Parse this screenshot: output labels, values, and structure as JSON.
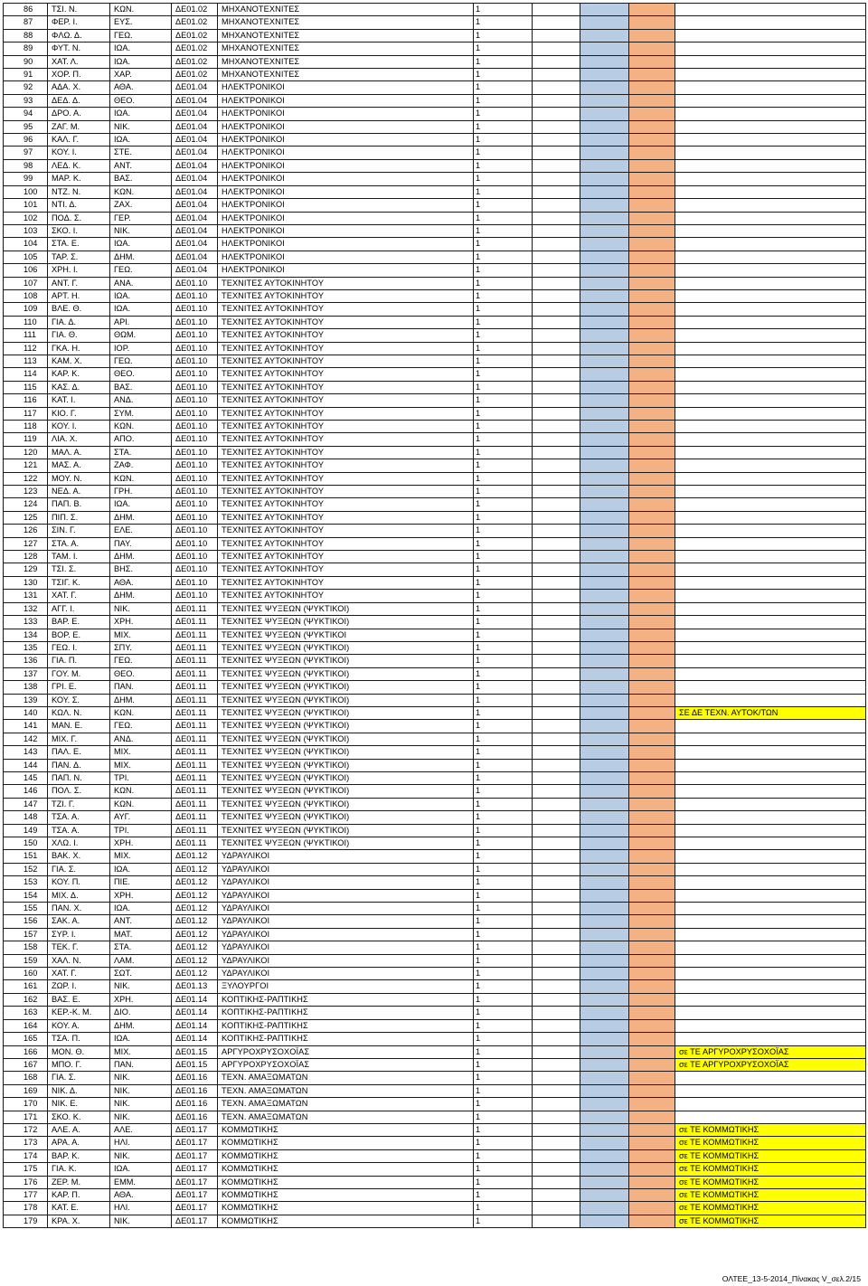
{
  "rows": [
    {
      "no": "86",
      "surname": "ΤΣΙ. Ν.",
      "father": "ΚΩΝ.",
      "code": "ΔΕ01.02",
      "specialty": "ΜΗΧΑΝΟΤΕΧΝΙΤΕΣ",
      "qty": "1",
      "note": ""
    },
    {
      "no": "87",
      "surname": "ΦΕΡ. Ι.",
      "father": "ΕΥΣ.",
      "code": "ΔΕ01.02",
      "specialty": "ΜΗΧΑΝΟΤΕΧΝΙΤΕΣ",
      "qty": "1",
      "note": ""
    },
    {
      "no": "88",
      "surname": "ΦΛΩ. Δ.",
      "father": "ΓΕΩ.",
      "code": "ΔΕ01.02",
      "specialty": "ΜΗΧΑΝΟΤΕΧΝΙΤΕΣ",
      "qty": "1",
      "note": ""
    },
    {
      "no": "89",
      "surname": "ΦΥΤ. Ν.",
      "father": "ΙΩΑ.",
      "code": "ΔΕ01.02",
      "specialty": "ΜΗΧΑΝΟΤΕΧΝΙΤΕΣ",
      "qty": "1",
      "note": ""
    },
    {
      "no": "90",
      "surname": "ΧΑΤ. Λ.",
      "father": "ΙΩΑ.",
      "code": "ΔΕ01.02",
      "specialty": "ΜΗΧΑΝΟΤΕΧΝΙΤΕΣ",
      "qty": "1",
      "note": ""
    },
    {
      "no": "91",
      "surname": "ΧΟΡ. Π.",
      "father": "ΧΑΡ.",
      "code": "ΔΕ01.02",
      "specialty": "ΜΗΧΑΝΟΤΕΧΝΙΤΕΣ",
      "qty": "1",
      "note": ""
    },
    {
      "no": "92",
      "surname": "ΑΔΑ. Χ.",
      "father": "ΑΘΑ.",
      "code": "ΔΕ01.04",
      "specialty": "ΗΛΕΚΤΡΟΝΙΚΟΙ",
      "qty": "1",
      "note": ""
    },
    {
      "no": "93",
      "surname": "ΔΕΔ. Δ.",
      "father": "ΘΕΟ.",
      "code": "ΔΕ01.04",
      "specialty": "ΗΛΕΚΤΡΟΝΙΚΟΙ",
      "qty": "1",
      "note": ""
    },
    {
      "no": "94",
      "surname": "ΔΡΟ. Α.",
      "father": "ΙΩΑ.",
      "code": "ΔΕ01.04",
      "specialty": "ΗΛΕΚΤΡΟΝΙΚΟΙ",
      "qty": "1",
      "note": ""
    },
    {
      "no": "95",
      "surname": "ΖΑΓ. Μ.",
      "father": "ΝΙΚ.",
      "code": "ΔΕ01.04",
      "specialty": "ΗΛΕΚΤΡΟΝΙΚΟΙ",
      "qty": "1",
      "note": ""
    },
    {
      "no": "96",
      "surname": "ΚΑΛ. Γ.",
      "father": "ΙΩΑ.",
      "code": "ΔΕ01.04",
      "specialty": "ΗΛΕΚΤΡΟΝΙΚΟΙ",
      "qty": "1",
      "note": ""
    },
    {
      "no": "97",
      "surname": "ΚΟΥ. Ι.",
      "father": "ΣΤΕ.",
      "code": "ΔΕ01.04",
      "specialty": "ΗΛΕΚΤΡΟΝΙΚΟΙ",
      "qty": "1",
      "note": ""
    },
    {
      "no": "98",
      "surname": "ΛΕΔ. Κ.",
      "father": "ΑΝΤ.",
      "code": "ΔΕ01.04",
      "specialty": "ΗΛΕΚΤΡΟΝΙΚΟΙ",
      "qty": "1",
      "note": ""
    },
    {
      "no": "99",
      "surname": "ΜΑΡ. Κ.",
      "father": "ΒΑΣ.",
      "code": "ΔΕ01.04",
      "specialty": "ΗΛΕΚΤΡΟΝΙΚΟΙ",
      "qty": "1",
      "note": ""
    },
    {
      "no": "100",
      "surname": "ΝΤΖ. Ν.",
      "father": "ΚΩΝ.",
      "code": "ΔΕ01.04",
      "specialty": "ΗΛΕΚΤΡΟΝΙΚΟΙ",
      "qty": "1",
      "note": ""
    },
    {
      "no": "101",
      "surname": "ΝΤΙ. Δ.",
      "father": "ΖΑΧ.",
      "code": "ΔΕ01.04",
      "specialty": "ΗΛΕΚΤΡΟΝΙΚΟΙ",
      "qty": "1",
      "note": ""
    },
    {
      "no": "102",
      "surname": "ΠΟΔ. Σ.",
      "father": "ΓΕΡ.",
      "code": "ΔΕ01.04",
      "specialty": "ΗΛΕΚΤΡΟΝΙΚΟΙ",
      "qty": "1",
      "note": ""
    },
    {
      "no": "103",
      "surname": "ΣΚΟ. Ι.",
      "father": "ΝΙΚ.",
      "code": "ΔΕ01.04",
      "specialty": "ΗΛΕΚΤΡΟΝΙΚΟΙ",
      "qty": "1",
      "note": ""
    },
    {
      "no": "104",
      "surname": "ΣΤΑ. Ε.",
      "father": "ΙΩΑ.",
      "code": "ΔΕ01.04",
      "specialty": "ΗΛΕΚΤΡΟΝΙΚΟΙ",
      "qty": "1",
      "note": ""
    },
    {
      "no": "105",
      "surname": "ΤΑΡ. Σ.",
      "father": "ΔΗΜ.",
      "code": "ΔΕ01.04",
      "specialty": "ΗΛΕΚΤΡΟΝΙΚΟΙ",
      "qty": "1",
      "note": ""
    },
    {
      "no": "106",
      "surname": "ΧΡΗ. Ι.",
      "father": "ΓΕΩ.",
      "code": "ΔΕ01.04",
      "specialty": "ΗΛΕΚΤΡΟΝΙΚΟΙ",
      "qty": "1",
      "note": ""
    },
    {
      "no": "107",
      "surname": "ΑΝΤ. Γ.",
      "father": "ΑΝΑ.",
      "code": "ΔΕ01.10",
      "specialty": "ΤΕΧΝΙΤΕΣ ΑΥΤΟΚΙΝΗΤΟΥ",
      "qty": "1",
      "note": ""
    },
    {
      "no": "108",
      "surname": "ΑΡΤ. Η.",
      "father": "ΙΩΑ.",
      "code": "ΔΕ01.10",
      "specialty": "ΤΕΧΝΙΤΕΣ ΑΥΤΟΚΙΝΗΤΟΥ",
      "qty": "1",
      "note": ""
    },
    {
      "no": "109",
      "surname": "ΒΛΕ. Θ.",
      "father": "ΙΩΑ.",
      "code": "ΔΕ01.10",
      "specialty": "ΤΕΧΝΙΤΕΣ ΑΥΤΟΚΙΝΗΤΟΥ",
      "qty": "1",
      "note": ""
    },
    {
      "no": "110",
      "surname": "ΓΙΑ. Δ.",
      "father": "ΑΡΙ.",
      "code": "ΔΕ01.10",
      "specialty": "ΤΕΧΝΙΤΕΣ ΑΥΤΟΚΙΝΗΤΟΥ",
      "qty": "1",
      "note": ""
    },
    {
      "no": "111",
      "surname": "ΓΙΑ. Θ.",
      "father": "ΘΩΜ.",
      "code": "ΔΕ01.10",
      "specialty": "ΤΕΧΝΙΤΕΣ ΑΥΤΟΚΙΝΗΤΟΥ",
      "qty": "1",
      "note": ""
    },
    {
      "no": "112",
      "surname": "ΓΚΑ. Η.",
      "father": "ΙΟΡ.",
      "code": "ΔΕ01.10",
      "specialty": " ΤΕΧΝΙΤΕΣ ΑΥΤΟΚΙΝΗΤΟΥ",
      "qty": "1",
      "note": ""
    },
    {
      "no": "113",
      "surname": "ΚΑΜ. Χ.",
      "father": "ΓΕΩ.",
      "code": "ΔΕ01.10",
      "specialty": "ΤΕΧΝΙΤΕΣ ΑΥΤΟΚΙΝΗΤΟΥ",
      "qty": "1",
      "note": ""
    },
    {
      "no": "114",
      "surname": "ΚΑΡ. Κ.",
      "father": "ΘΕΟ.",
      "code": "ΔΕ01.10",
      "specialty": "ΤΕΧΝΙΤΕΣ ΑΥΤΟΚΙΝΗΤΟΥ",
      "qty": "1",
      "note": ""
    },
    {
      "no": "115",
      "surname": "ΚΑΣ. Δ.",
      "father": "ΒΑΣ.",
      "code": "ΔΕ01.10",
      "specialty": "ΤΕΧΝΙΤΕΣ ΑΥΤΟΚΙΝΗΤΟΥ",
      "qty": "1",
      "note": ""
    },
    {
      "no": "116",
      "surname": "ΚΑΤ. Ι.",
      "father": "ΑΝΔ.",
      "code": "ΔΕ01.10",
      "specialty": "ΤΕΧΝΙΤΕΣ ΑΥΤΟΚΙΝΗΤΟΥ",
      "qty": "1",
      "note": ""
    },
    {
      "no": "117",
      "surname": "ΚΙΟ. Γ.",
      "father": "ΣΥΜ.",
      "code": "ΔΕ01.10",
      "specialty": "ΤΕΧΝΙΤΕΣ ΑΥΤΟΚΙΝΗΤΟΥ",
      "qty": "1",
      "note": ""
    },
    {
      "no": "118",
      "surname": "ΚΟΥ. Ι.",
      "father": "ΚΩΝ.",
      "code": "ΔΕ01.10",
      "specialty": "ΤΕΧΝΙΤΕΣ ΑΥΤΟΚΙΝΗΤΟΥ",
      "qty": "1",
      "note": ""
    },
    {
      "no": "119",
      "surname": "ΛΙΑ. Χ.",
      "father": "ΑΠΟ.",
      "code": "ΔΕ01.10",
      "specialty": "ΤΕΧΝΙΤΕΣ ΑΥΤΟΚΙΝΗΤΟΥ",
      "qty": "1",
      "note": ""
    },
    {
      "no": "120",
      "surname": "ΜΑΛ. Α.",
      "father": "ΣΤΑ.",
      "code": "ΔΕ01.10",
      "specialty": "ΤΕΧΝΙΤΕΣ ΑΥΤΟΚΙΝΗΤΟΥ",
      "qty": "1",
      "note": ""
    },
    {
      "no": "121",
      "surname": "ΜΑΣ. Α.",
      "father": "ΖΑΦ.",
      "code": "ΔΕ01.10",
      "specialty": "ΤΕΧΝΙΤΕΣ ΑΥΤΟΚΙΝΗΤΟΥ",
      "qty": "1",
      "note": ""
    },
    {
      "no": "122",
      "surname": "ΜΟΥ. Ν.",
      "father": "ΚΩΝ.",
      "code": "ΔΕ01.10",
      "specialty": "ΤΕΧΝΙΤΕΣ ΑΥΤΟΚΙΝΗΤΟΥ",
      "qty": "1",
      "note": ""
    },
    {
      "no": "123",
      "surname": "ΝΕΔ. Α.",
      "father": "ΓΡΗ.",
      "code": "ΔΕ01.10",
      "specialty": "ΤΕΧΝΙΤΕΣ ΑΥΤΟΚΙΝΗΤΟΥ",
      "qty": "1",
      "note": ""
    },
    {
      "no": "124",
      "surname": "ΠΑΠ. Β.",
      "father": "ΙΩΑ.",
      "code": "ΔΕ01.10",
      "specialty": "ΤΕΧΝΙΤΕΣ ΑΥΤΟΚΙΝΗΤΟΥ",
      "qty": "1",
      "note": ""
    },
    {
      "no": "125",
      "surname": "ΠΙΠ. Σ.",
      "father": "ΔΗΜ.",
      "code": "ΔΕ01.10",
      "specialty": "ΤΕΧΝΙΤΕΣ ΑΥΤΟΚΙΝΗΤΟΥ",
      "qty": "1",
      "note": ""
    },
    {
      "no": "126",
      "surname": "ΣΙΝ. Γ.",
      "father": "ΕΛΕ.",
      "code": "ΔΕ01.10",
      "specialty": "ΤΕΧΝΙΤΕΣ ΑΥΤΟΚΙΝΗΤΟΥ",
      "qty": "1",
      "note": ""
    },
    {
      "no": "127",
      "surname": "ΣΤΑ. Α.",
      "father": "ΠΑΥ.",
      "code": "ΔΕ01.10",
      "specialty": "ΤΕΧΝΙΤΕΣ ΑΥΤΟΚΙΝΗΤΟΥ",
      "qty": "1",
      "note": ""
    },
    {
      "no": "128",
      "surname": "ΤΑΜ. Ι.",
      "father": "ΔΗΜ.",
      "code": "ΔΕ01.10",
      "specialty": "ΤΕΧΝΙΤΕΣ ΑΥΤΟΚΙΝΗΤΟΥ",
      "qty": "1",
      "note": ""
    },
    {
      "no": "129",
      "surname": "ΤΣΙ. Σ.",
      "father": "ΒΗΣ.",
      "code": "ΔΕ01.10",
      "specialty": "ΤΕΧΝΙΤΕΣ ΑΥΤΟΚΙΝΗΤΟΥ",
      "qty": "1",
      "note": ""
    },
    {
      "no": "130",
      "surname": "ΤΣΙΓ. Κ.",
      "father": "ΑΘΑ.",
      "code": "ΔΕ01.10",
      "specialty": "ΤΕΧΝΙΤΕΣ ΑΥΤΟΚΙΝΗΤΟΥ",
      "qty": "1",
      "note": ""
    },
    {
      "no": "131",
      "surname": "ΧΑΤ. Γ.",
      "father": "ΔΗΜ.",
      "code": "ΔΕ01.10",
      "specialty": "ΤΕΧΝΙΤΕΣ ΑΥΤΟΚΙΝΗΤΟΥ",
      "qty": "1",
      "note": ""
    },
    {
      "no": "132",
      "surname": "ΑΓΓ. Ι.",
      "father": "ΝΙΚ.",
      "code": "ΔΕ01.11",
      "specialty": "ΤΕΧΝΙΤΕΣ ΨΥΞΕΩΝ (ΨΥΚΤΙΚΟΙ)",
      "qty": "1",
      "note": ""
    },
    {
      "no": "133",
      "surname": "ΒΑΡ. Ε.",
      "father": "ΧΡΗ.",
      "code": "ΔΕ01.11",
      "specialty": "ΤΕΧΝΙΤΕΣ ΨΥΞΕΩΝ (ΨΥΚΤΙΚΟΙ)",
      "qty": "1",
      "note": ""
    },
    {
      "no": "134",
      "surname": "ΒΟΡ. Ε.",
      "father": "ΜΙΧ.",
      "code": "ΔΕ01.11",
      "specialty": "ΤΕΧΝΙΤΕΣ ΨΥΞΕΩΝ (ΨΥΚΤΙΚΟΙ",
      "qty": "1",
      "note": ""
    },
    {
      "no": "135",
      "surname": "ΓΕΩ. Ι.",
      "father": "ΣΠΥ.",
      "code": "ΔΕ01.11",
      "specialty": "ΤΕΧΝΙΤΕΣ ΨΥΞΕΩΝ (ΨΥΚΤΙΚΟΙ)",
      "qty": "1",
      "note": ""
    },
    {
      "no": "136",
      "surname": "ΓΙΑ. Π.",
      "father": "ΓΕΩ.",
      "code": "ΔΕ01.11",
      "specialty": "ΤΕΧΝΙΤΕΣ ΨΥΞΕΩΝ (ΨΥΚΤΙΚΟΙ)",
      "qty": "1",
      "note": ""
    },
    {
      "no": "137",
      "surname": "ΓΟΥ. Μ.",
      "father": "ΘΕΟ.",
      "code": "ΔΕ01.11",
      "specialty": "ΤΕΧΝΙΤΕΣ ΨΥΞΕΩΝ (ΨΥΚΤΙΚΟΙ)",
      "qty": "1",
      "note": ""
    },
    {
      "no": "138",
      "surname": "ΓΡΙ. Ε.",
      "father": "ΠΑΝ.",
      "code": "ΔΕ01.11",
      "specialty": "ΤΕΧΝΙΤΕΣ ΨΥΞΕΩΝ (ΨΥΚΤΙΚΟΙ)",
      "qty": "1",
      "note": ""
    },
    {
      "no": "139",
      "surname": "ΚΟΥ. Σ.",
      "father": "ΔΗΜ.",
      "code": "ΔΕ01.11",
      "specialty": "ΤΕΧΝΙΤΕΣ ΨΥΞΕΩΝ (ΨΥΚΤΙΚΟΙ)",
      "qty": "1",
      "note": ""
    },
    {
      "no": "140",
      "surname": "ΚΩΛ. Ν.",
      "father": "ΚΩΝ.",
      "code": "ΔΕ01.11",
      "specialty": "ΤΕΧΝΙΤΕΣ ΨΥΞΕΩΝ (ΨΥΚΤΙΚΟΙ)",
      "qty": "1",
      "note": "ΣΕ ΔΕ ΤΕΧΝ. ΑΥΤΟΚ/ΤΩΝ"
    },
    {
      "no": "141",
      "surname": "ΜΑΝ. Ε.",
      "father": "ΓΕΩ.",
      "code": "ΔΕ01.11",
      "specialty": "ΤΕΧΝΙΤΕΣ ΨΥΞΕΩΝ (ΨΥΚΤΙΚΟΙ)",
      "qty": "1",
      "note": ""
    },
    {
      "no": "142",
      "surname": "ΜΙΧ. Γ.",
      "father": "ΑΝΔ.",
      "code": "ΔΕ01.11",
      "specialty": "ΤΕΧΝΙΤΕΣ ΨΥΞΕΩΝ (ΨΥΚΤΙΚΟΙ)",
      "qty": "1",
      "note": ""
    },
    {
      "no": "143",
      "surname": "ΠΑΛ. Ε.",
      "father": "ΜΙΧ.",
      "code": "ΔΕ01.11",
      "specialty": " ΤΕΧΝΙΤΕΣ ΨΥΞΕΩΝ (ΨΥΚΤΙΚΟΙ)",
      "qty": "1",
      "note": ""
    },
    {
      "no": "144",
      "surname": "ΠΑΝ. Δ.",
      "father": "ΜΙΧ.",
      "code": "ΔΕ01.11",
      "specialty": "ΤΕΧΝΙΤΕΣ ΨΥΞΕΩΝ (ΨΥΚΤΙΚΟΙ)",
      "qty": "1",
      "note": ""
    },
    {
      "no": "145",
      "surname": "ΠΑΠ. Ν.",
      "father": "ΤΡΙ.",
      "code": "ΔΕ01.11",
      "specialty": "ΤΕΧΝΙΤΕΣ ΨΥΞΕΩΝ (ΨΥΚΤΙΚΟΙ)",
      "qty": "1",
      "note": ""
    },
    {
      "no": "146",
      "surname": "ΠΟΛ. Σ.",
      "father": "ΚΩΝ.",
      "code": "ΔΕ01.11",
      "specialty": "ΤΕΧΝΙΤΕΣ ΨΥΞΕΩΝ (ΨΥΚΤΙΚΟΙ)",
      "qty": "1",
      "note": ""
    },
    {
      "no": "147",
      "surname": "ΤΖΙ. Γ.",
      "father": "ΚΩΝ.",
      "code": "ΔΕ01.11",
      "specialty": "ΤΕΧΝΙΤΕΣ ΨΥΞΕΩΝ (ΨΥΚΤΙΚΟΙ)",
      "qty": "1",
      "note": ""
    },
    {
      "no": "148",
      "surname": "ΤΣΑ. Α.",
      "father": "ΑΥΓ.",
      "code": "ΔΕ01.11",
      "specialty": "ΤΕΧΝΙΤΕΣ ΨΥΞΕΩΝ (ΨΥΚΤΙΚΟΙ)",
      "qty": "1",
      "note": ""
    },
    {
      "no": "149",
      "surname": "ΤΣΑ. Α.",
      "father": "ΤΡΙ.",
      "code": "ΔΕ01.11",
      "specialty": "ΤΕΧΝΙΤΕΣ ΨΥΞΕΩΝ (ΨΥΚΤΙΚΟΙ)",
      "qty": "1",
      "note": ""
    },
    {
      "no": "150",
      "surname": "ΧΛΩ. Ι.",
      "father": "ΧΡΗ.",
      "code": "ΔΕ01.11",
      "specialty": "ΤΕΧΝΙΤΕΣ ΨΥΞΕΩΝ (ΨΥΚΤΙΚΟΙ)",
      "qty": "1",
      "note": ""
    },
    {
      "no": "151",
      "surname": "ΒΑΚ. Χ.",
      "father": "ΜΙΧ.",
      "code": "ΔΕ01.12",
      "specialty": "ΥΔΡΑΥΛΙΚΟΙ",
      "qty": "1",
      "note": ""
    },
    {
      "no": "152",
      "surname": "ΓΙΑ. Σ.",
      "father": "ΙΩΑ.",
      "code": "ΔΕ01.12",
      "specialty": "ΥΔΡΑΥΛΙΚΟΙ",
      "qty": "1",
      "note": ""
    },
    {
      "no": "153",
      "surname": "ΚΟΥ. Π.",
      "father": "ΠΙΕ.",
      "code": "ΔΕ01.12",
      "specialty": "ΥΔΡΑΥΛΙΚΟΙ",
      "qty": "1",
      "note": ""
    },
    {
      "no": "154",
      "surname": "ΜΙΧ. Δ.",
      "father": "ΧΡΗ.",
      "code": "ΔΕ01.12",
      "specialty": "ΥΔΡΑΥΛΙΚΟΙ",
      "qty": "1",
      "note": ""
    },
    {
      "no": "155",
      "surname": "ΠΑΝ. Χ.",
      "father": "ΙΩΑ.",
      "code": "ΔΕ01.12",
      "specialty": "ΥΔΡΑΥΛΙΚΟΙ",
      "qty": "1",
      "note": ""
    },
    {
      "no": "156",
      "surname": "ΣΑΚ. Α.",
      "father": "ΑΝΤ.",
      "code": "ΔΕ01.12",
      "specialty": "ΥΔΡΑΥΛΙΚΟΙ",
      "qty": "1",
      "note": ""
    },
    {
      "no": "157",
      "surname": "ΣΥΡ. Ι.",
      "father": "ΜΑΤ.",
      "code": "ΔΕ01.12",
      "specialty": "ΥΔΡΑΥΛΙΚΟΙ",
      "qty": "1",
      "note": ""
    },
    {
      "no": "158",
      "surname": "ΤΕΚ. Γ.",
      "father": "ΣΤΑ.",
      "code": "ΔΕ01.12",
      "specialty": "ΥΔΡΑΥΛΙΚΟΙ",
      "qty": "1",
      "note": ""
    },
    {
      "no": "159",
      "surname": "ΧΑΛ. Ν.",
      "father": "ΛΑΜ.",
      "code": "ΔΕ01.12",
      "specialty": "ΥΔΡΑΥΛΙΚΟΙ",
      "qty": "1",
      "note": ""
    },
    {
      "no": "160",
      "surname": "ΧΑΤ. Γ.",
      "father": "ΣΩΤ.",
      "code": "ΔΕ01.12",
      "specialty": "ΥΔΡΑΥΛΙΚΟΙ",
      "qty": "1",
      "note": ""
    },
    {
      "no": "161",
      "surname": "ΖΩΡ. Ι.",
      "father": "ΝΙΚ.",
      "code": "ΔΕ01.13",
      "specialty": "ΞΥΛΟΥΡΓΟΙ",
      "qty": "1",
      "note": ""
    },
    {
      "no": "162",
      "surname": "ΒΑΣ. Ε.",
      "father": "ΧΡΗ.",
      "code": "ΔΕ01.14",
      "specialty": "ΚΟΠΤΙΚΗΣ-ΡΑΠΤΙΚΗΣ",
      "qty": "1",
      "note": ""
    },
    {
      "no": "163",
      "surname": "ΚΕΡ.-Κ. Μ.",
      "father": "ΔΙΟ.",
      "code": "ΔΕ01.14",
      "specialty": "ΚΟΠΤΙΚΗΣ-ΡΑΠΤΙΚΗΣ",
      "qty": "1",
      "note": ""
    },
    {
      "no": "164",
      "surname": "ΚΟΥ. Α.",
      "father": "ΔΗΜ.",
      "code": "ΔΕ01.14",
      "specialty": "ΚΟΠΤΙΚΗΣ-ΡΑΠΤΙΚΗΣ",
      "qty": "1",
      "note": ""
    },
    {
      "no": "165",
      "surname": "ΤΣΑ. Π.",
      "father": "ΙΩΑ.",
      "code": "ΔΕ01.14",
      "specialty": "ΚΟΠΤΙΚΗΣ-ΡΑΠΤΙΚΗΣ",
      "qty": "1",
      "note": ""
    },
    {
      "no": "166",
      "surname": "ΜΟΝ. Θ.",
      "father": "ΜΙΧ.",
      "code": "ΔΕ01.15",
      "specialty": "ΑΡΓΥΡΟΧΡΥΣΟΧΟΪΑΣ",
      "qty": "1",
      "note": "σε ΤΕ ΑΡΓΥΡΟΧΡΥΣΟΧΟΪΑΣ"
    },
    {
      "no": "167",
      "surname": "ΜΠΟ. Γ.",
      "father": "ΠΑΝ.",
      "code": "ΔΕ01.15",
      "specialty": "ΑΡΓΥΡΟΧΡΥΣΟΧΟΪΑΣ",
      "qty": "1",
      "note": "σε ΤΕ ΑΡΓΥΡΟΧΡΥΣΟΧΟΪΑΣ"
    },
    {
      "no": "168",
      "surname": "ΓΙΑ. Σ.",
      "father": "ΝΙΚ.",
      "code": "ΔΕ01.16",
      "specialty": "ΤΕΧΝ. ΑΜΑΞΩΜΑΤΩΝ",
      "qty": "1",
      "note": ""
    },
    {
      "no": "169",
      "surname": "ΝΙΚ. Δ.",
      "father": "ΝΙΚ.",
      "code": "ΔΕ01.16",
      "specialty": "ΤΕΧΝ. ΑΜΑΞΩΜΑΤΩΝ",
      "qty": "1",
      "note": ""
    },
    {
      "no": "170",
      "surname": "ΝΙΚ. Ε.",
      "father": "ΝΙΚ.",
      "code": "ΔΕ01.16",
      "specialty": "ΤΕΧΝ. ΑΜΑΞΩΜΑΤΩΝ",
      "qty": "1",
      "note": ""
    },
    {
      "no": "171",
      "surname": "ΣΚΟ. Κ.",
      "father": "ΝΙΚ.",
      "code": "ΔΕ01.16",
      "specialty": "ΤΕΧΝ. ΑΜΑΞΩΜΑΤΩΝ",
      "qty": "1",
      "note": ""
    },
    {
      "no": "172",
      "surname": "ΑΛΕ. Α.",
      "father": "ΑΛΕ.",
      "code": "ΔΕ01.17",
      "specialty": "ΚΟΜΜΩΤΙΚΗΣ",
      "qty": "1",
      "note": "σε ΤΕ ΚΟΜΜΩΤΙΚΗΣ"
    },
    {
      "no": "173",
      "surname": "ΑΡΑ. Α.",
      "father": "ΗΛΙ.",
      "code": "ΔΕ01.17",
      "specialty": "ΚΟΜΜΩΤΙΚΗΣ",
      "qty": "1",
      "note": "σε ΤΕ ΚΟΜΜΩΤΙΚΗΣ"
    },
    {
      "no": "174",
      "surname": "ΒΑΡ. Κ.",
      "father": "ΝΙΚ.",
      "code": "ΔΕ01.17",
      "specialty": "ΚΟΜΜΩΤΙΚΗΣ",
      "qty": "1",
      "note": "σε ΤΕ ΚΟΜΜΩΤΙΚΗΣ"
    },
    {
      "no": "175",
      "surname": "ΓΙΑ. Κ.",
      "father": "ΙΩΑ.",
      "code": "ΔΕ01.17",
      "specialty": "ΚΟΜΜΩΤΙΚΗΣ",
      "qty": "1",
      "note": "σε ΤΕ ΚΟΜΜΩΤΙΚΗΣ"
    },
    {
      "no": "176",
      "surname": "ΖΕΡ. Μ.",
      "father": "ΕΜΜ.",
      "code": "ΔΕ01.17",
      "specialty": "ΚΟΜΜΩΤΙΚΗΣ",
      "qty": "1",
      "note": "σε ΤΕ ΚΟΜΜΩΤΙΚΗΣ"
    },
    {
      "no": "177",
      "surname": "ΚΑΡ. Π.",
      "father": "ΑΘΑ.",
      "code": "ΔΕ01.17",
      "specialty": "ΚΟΜΜΩΤΙΚΗΣ",
      "qty": "1",
      "note": "σε ΤΕ ΚΟΜΜΩΤΙΚΗΣ"
    },
    {
      "no": "178",
      "surname": "ΚΑΤ. Ε.",
      "father": "ΗΛΙ.",
      "code": "ΔΕ01.17",
      "specialty": "ΚΟΜΜΩΤΙΚΗΣ",
      "qty": "1",
      "note": "σε ΤΕ ΚΟΜΜΩΤΙΚΗΣ"
    },
    {
      "no": "179",
      "surname": "ΚΡΑ. Χ.",
      "father": "ΝΙΚ.",
      "code": "ΔΕ01.17",
      "specialty": "ΚΟΜΜΩΤΙΚΗΣ",
      "qty": "1",
      "note": "σε ΤΕ ΚΟΜΜΩΤΙΚΗΣ"
    }
  ],
  "footer": "ΟΛΤΕΕ_13-5-2014_Πίνακας V_σελ.2/15",
  "colors": {
    "blue_column": "#b8cce4",
    "orange_column": "#f4b183",
    "highlight": "#ffff00"
  }
}
